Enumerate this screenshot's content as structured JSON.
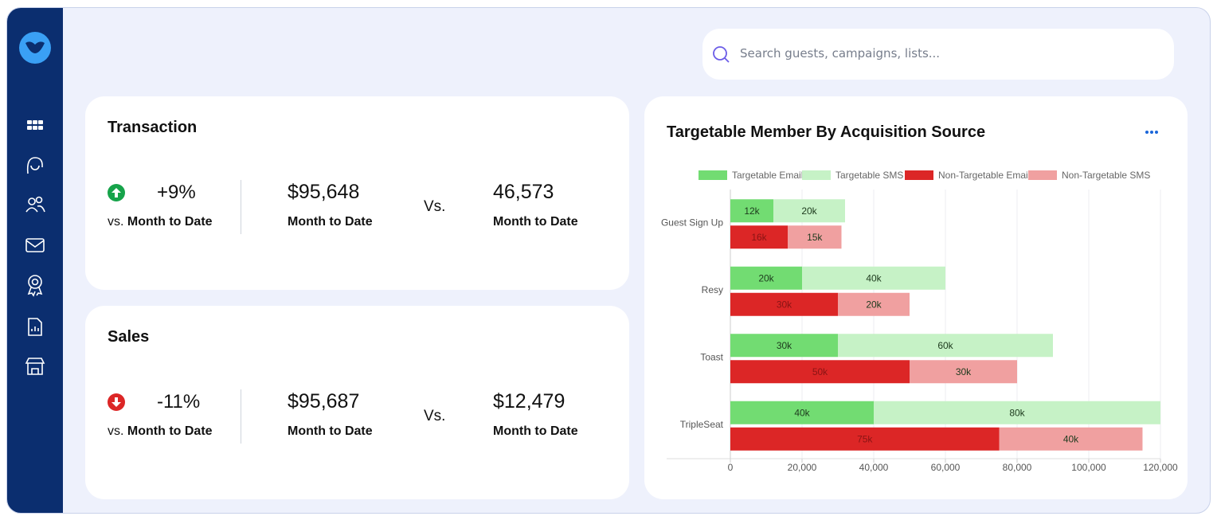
{
  "search": {
    "placeholder": "Search guests, campaigns, lists..."
  },
  "cards": [
    {
      "title": "Transaction",
      "trend": "up",
      "change": "+9%",
      "change_prefix": "vs.",
      "change_caption": "Month to Date",
      "current": "$95,648",
      "current_caption": "Month to Date",
      "vs": "Vs.",
      "previous": "46,573",
      "previous_caption": "Month to Date"
    },
    {
      "title": "Sales",
      "trend": "down",
      "change": "-11%",
      "change_prefix": "vs.",
      "change_caption": "Month to Date",
      "current": "$95,687",
      "current_caption": "Month to Date",
      "vs": "Vs.",
      "previous": "$12,479",
      "previous_caption": "Month to Date"
    }
  ],
  "chart_data": {
    "type": "bar",
    "orientation": "horizontal",
    "title": "Targetable Member By Acquisition Source",
    "categories": [
      "Guest Sign Up",
      "Resy",
      "Toast",
      "TripleSeat"
    ],
    "series": [
      {
        "name": "Targetable Email",
        "color": "#72dc72",
        "values": [
          12000,
          20000,
          30000,
          40000
        ],
        "value_labels": [
          "12k",
          "20k",
          "30k",
          "40k"
        ]
      },
      {
        "name": "Targetable SMS",
        "color": "#c6f2c6",
        "values": [
          20000,
          40000,
          60000,
          80000
        ],
        "value_labels": [
          "20k",
          "40k",
          "60k",
          "80k"
        ]
      },
      {
        "name": "Non-Targetable Email",
        "color": "#dc2626",
        "values": [
          16000,
          30000,
          50000,
          75000
        ],
        "value_labels": [
          "16k",
          "30k",
          "50k",
          "75k"
        ]
      },
      {
        "name": "Non-Targetable SMS",
        "color": "#f0a0a0",
        "values": [
          15000,
          20000,
          30000,
          40000
        ],
        "value_labels": [
          "15k",
          "20k",
          "30k",
          "40k"
        ]
      }
    ],
    "xlim": [
      0,
      120000
    ],
    "xticks": [
      0,
      {
        "value": 20000,
        "label": "20,000"
      },
      {
        "value": 40000,
        "label": "40,000"
      },
      {
        "value": 60000,
        "label": "60,000"
      },
      {
        "value": 80000,
        "label": "80,000"
      },
      {
        "value": 100000,
        "label": "100,000"
      },
      {
        "value": 120000,
        "label": "120,000"
      }
    ],
    "grid": true,
    "legend": "top"
  }
}
